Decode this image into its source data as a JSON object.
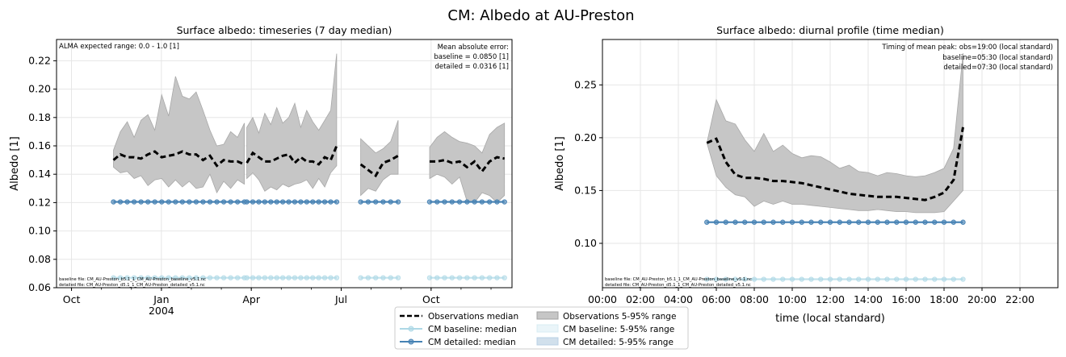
{
  "figure_title": "CM: Albedo at AU-Preston",
  "colors": {
    "obs": "#000000",
    "obs_band": "#c6c6c6",
    "baseline": "#add8e6",
    "detailed": "#4682b4",
    "grid": "#e6e6e6"
  },
  "legend": {
    "placement": "lower-center",
    "entries": [
      {
        "key": "obs_median",
        "label": "Observations median"
      },
      {
        "key": "cm_baseline_median",
        "label": "CM baseline: median"
      },
      {
        "key": "cm_detailed_median",
        "label": "CM detailed: median"
      },
      {
        "key": "obs_band",
        "label": "Observations 5-95% range"
      },
      {
        "key": "baseline_band",
        "label": "CM baseline: 5-95% range"
      },
      {
        "key": "detailed_band",
        "label": "CM detailed: 5-95% range"
      }
    ]
  },
  "chart_data": [
    {
      "type": "line",
      "title": "Surface albedo: timeseries (7 day median)",
      "xlabel": "",
      "ylabel": "Albedo [1]",
      "ylim": [
        0.06,
        0.235
      ],
      "xlim_months": [
        -3.5,
        11.7
      ],
      "grid": true,
      "yticks": [
        0.06,
        0.08,
        0.1,
        0.12,
        0.14,
        0.16,
        0.18,
        0.2,
        0.22
      ],
      "ytick_labels": [
        "0.06",
        "0.08",
        "0.10",
        "0.12",
        "0.14",
        "0.16",
        "0.18",
        "0.20",
        "0.22"
      ],
      "xticks": [
        {
          "m": -3,
          "label": "Oct"
        },
        {
          "m": 0,
          "label": "Jan",
          "sub": "2004"
        },
        {
          "m": 3,
          "label": "Apr"
        },
        {
          "m": 6,
          "label": "Jul"
        },
        {
          "m": 9,
          "label": "Oct"
        }
      ],
      "x_minor_months": [
        -3,
        -2,
        -1,
        0,
        1,
        2,
        3,
        4,
        5,
        6,
        7,
        8,
        9,
        10,
        11
      ],
      "annotation_tl": "ALMA expected range: 0.0 - 1.0 [1]",
      "annotation_tr": [
        "Mean absolute error:",
        "baseline = 0.0850 [1]",
        "detailed = 0.0316 [1]"
      ],
      "files": [
        "baseline file: CM_AU-Preston_b5.1_1_CM_AU-Preston_baseline_v5.1.nc",
        "detailed file: CM_AU-Preston_d5.1_1_CM_AU-Preston_detailed_v5.1.nc"
      ],
      "segments": [
        {
          "start": -1.6,
          "step": 0.23,
          "median": [
            0.15,
            0.154,
            0.152,
            0.152,
            0.151,
            0.154,
            0.156,
            0.152,
            0.153,
            0.154,
            0.156,
            0.154,
            0.154,
            0.15,
            0.153,
            0.146,
            0.15,
            0.149,
            0.149,
            0.147
          ],
          "p95": [
            0.157,
            0.17,
            0.177,
            0.166,
            0.178,
            0.182,
            0.171,
            0.196,
            0.181,
            0.209,
            0.195,
            0.193,
            0.198,
            0.185,
            0.171,
            0.16,
            0.161,
            0.17,
            0.166,
            0.176
          ],
          "p5": [
            0.145,
            0.141,
            0.142,
            0.137,
            0.139,
            0.132,
            0.136,
            0.137,
            0.131,
            0.136,
            0.131,
            0.135,
            0.13,
            0.131,
            0.14,
            0.127,
            0.135,
            0.13,
            0.136,
            0.133
          ],
          "baseline": 0.067,
          "detailed": 0.1205
        },
        {
          "start": 2.85,
          "step": 0.2,
          "median": [
            0.148,
            0.155,
            0.152,
            0.149,
            0.149,
            0.151,
            0.153,
            0.154,
            0.148,
            0.152,
            0.149,
            0.149,
            0.147,
            0.152,
            0.15,
            0.16
          ],
          "p95": [
            0.173,
            0.18,
            0.169,
            0.183,
            0.175,
            0.187,
            0.176,
            0.18,
            0.19,
            0.173,
            0.185,
            0.177,
            0.171,
            0.178,
            0.185,
            0.225
          ],
          "p5": [
            0.137,
            0.141,
            0.136,
            0.128,
            0.131,
            0.129,
            0.133,
            0.131,
            0.133,
            0.134,
            0.136,
            0.13,
            0.137,
            0.131,
            0.141,
            0.146
          ],
          "baseline": 0.067,
          "detailed": 0.1205
        },
        {
          "start": 6.65,
          "step": 0.25,
          "median": [
            0.147,
            0.143,
            0.139,
            0.148,
            0.15,
            0.153
          ],
          "p95": [
            0.165,
            0.16,
            0.155,
            0.158,
            0.163,
            0.178
          ],
          "p5": [
            0.125,
            0.13,
            0.128,
            0.136,
            0.14,
            0.14
          ],
          "baseline": 0.067,
          "detailed": 0.1205
        },
        {
          "start": 8.95,
          "step": 0.25,
          "median": [
            0.149,
            0.149,
            0.15,
            0.148,
            0.149,
            0.145,
            0.149,
            0.142,
            0.149,
            0.152,
            0.151
          ],
          "p95": [
            0.159,
            0.166,
            0.17,
            0.166,
            0.163,
            0.162,
            0.16,
            0.155,
            0.168,
            0.173,
            0.176
          ],
          "p5": [
            0.137,
            0.14,
            0.138,
            0.133,
            0.138,
            0.121,
            0.12,
            0.127,
            0.125,
            0.12,
            0.125
          ],
          "baseline": 0.067,
          "detailed": 0.1205
        }
      ]
    },
    {
      "type": "line",
      "title": "Surface albedo: diurnal profile (time median)",
      "xlabel": "time (local standard)",
      "ylabel": "Albedo [1]",
      "ylim": [
        0.058,
        0.293
      ],
      "xlim": [
        0,
        24
      ],
      "grid": true,
      "yticks": [
        0.1,
        0.15,
        0.2,
        0.25
      ],
      "ytick_labels": [
        "0.10",
        "0.15",
        "0.20",
        "0.25"
      ],
      "xticks": [
        0,
        2,
        4,
        6,
        8,
        10,
        12,
        14,
        16,
        18,
        20,
        22
      ],
      "xtick_labels": [
        "00:00",
        "02:00",
        "04:00",
        "06:00",
        "08:00",
        "10:00",
        "12:00",
        "14:00",
        "16:00",
        "18:00",
        "20:00",
        "22:00"
      ],
      "annotation_tr": [
        "Timing of mean peak: obs=19:00 (local standard)",
        "baseline=05:30 (local standard)",
        "detailed=07:30 (local standard)"
      ],
      "files": [
        "baseline file: CM_AU-Preston_b5.1_1_CM_AU-Preston_baseline_v5.1.nc",
        "detailed file: CM_AU-Preston_d5.1_1_CM_AU-Preston_detailed_v5.1.nc"
      ],
      "x": [
        5.5,
        6.0,
        6.5,
        7.0,
        7.5,
        8.0,
        8.5,
        9.0,
        9.5,
        10.0,
        10.5,
        11.0,
        11.5,
        12.0,
        12.5,
        13.0,
        13.5,
        14.0,
        14.5,
        15.0,
        15.5,
        16.0,
        16.5,
        17.0,
        17.5,
        18.0,
        18.5,
        19.0
      ],
      "median": [
        0.195,
        0.199,
        0.177,
        0.165,
        0.162,
        0.162,
        0.161,
        0.159,
        0.159,
        0.158,
        0.157,
        0.155,
        0.153,
        0.151,
        0.149,
        0.147,
        0.146,
        0.145,
        0.144,
        0.144,
        0.144,
        0.143,
        0.142,
        0.141,
        0.144,
        0.148,
        0.16,
        0.21
      ],
      "p95": [
        0.195,
        0.236,
        0.216,
        0.213,
        0.198,
        0.187,
        0.204,
        0.187,
        0.193,
        0.185,
        0.181,
        0.183,
        0.182,
        0.177,
        0.171,
        0.174,
        0.168,
        0.167,
        0.164,
        0.167,
        0.166,
        0.164,
        0.163,
        0.164,
        0.167,
        0.171,
        0.19,
        0.28
      ],
      "p5": [
        0.195,
        0.164,
        0.153,
        0.146,
        0.144,
        0.135,
        0.14,
        0.137,
        0.14,
        0.137,
        0.137,
        0.136,
        0.135,
        0.134,
        0.133,
        0.132,
        0.131,
        0.131,
        0.132,
        0.131,
        0.13,
        0.13,
        0.129,
        0.129,
        0.129,
        0.13,
        0.14,
        0.15
      ],
      "baseline": 0.066,
      "detailed": 0.12
    }
  ]
}
